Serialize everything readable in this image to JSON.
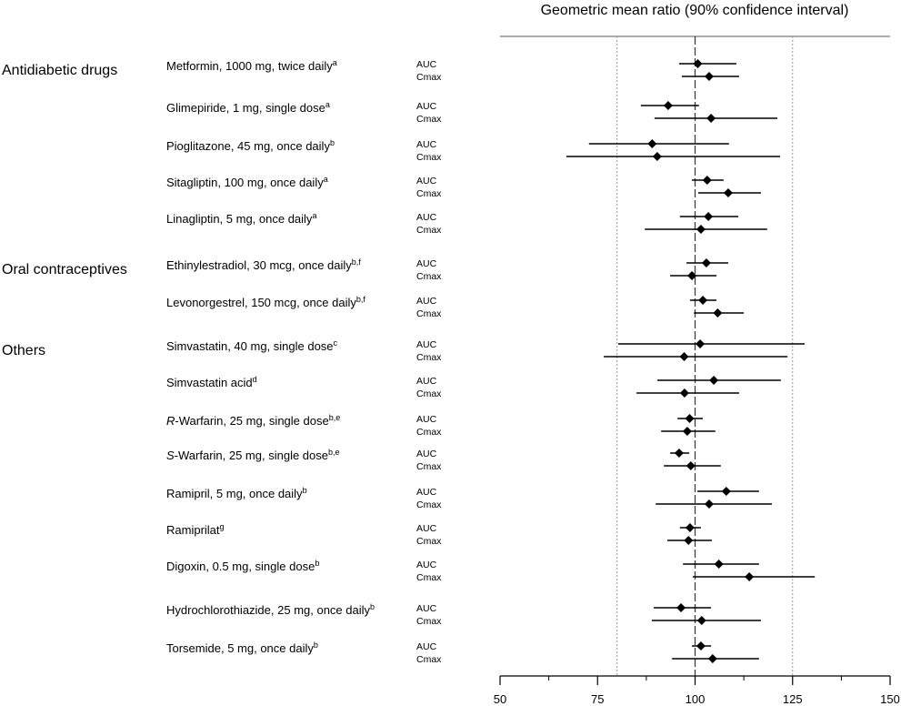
{
  "chart_data": {
    "type": "forest",
    "title": "Geometric mean ratio (90% confidence interval)",
    "xlim": [
      50,
      150
    ],
    "x_ticks": [
      50,
      75,
      100,
      125,
      150
    ],
    "x_minor_ticks": [
      62.5,
      87.5,
      112.5,
      137.5
    ],
    "reference_lines": {
      "solid_dashed": 100,
      "dotted": [
        80,
        125
      ]
    },
    "metrics": [
      "AUC",
      "Cmax"
    ],
    "groups": [
      {
        "label": "Antidiabetic drugs",
        "drugs": [
          {
            "name": "Metformin, 1000 mg, twice daily",
            "italic_prefix": "",
            "sup": "a",
            "AUC": {
              "gmr": 100.7,
              "lo": 95.9,
              "hi": 110.6
            },
            "Cmax": {
              "gmr": 103.6,
              "lo": 96.6,
              "hi": 111.3
            }
          },
          {
            "name": "Glimepiride, 1 mg, single dose",
            "italic_prefix": "",
            "sup": "a",
            "AUC": {
              "gmr": 93.1,
              "lo": 86.1,
              "hi": 101.0
            },
            "Cmax": {
              "gmr": 104.1,
              "lo": 89.6,
              "hi": 121.1
            }
          },
          {
            "name": "Pioglitazone, 45 mg, once daily",
            "italic_prefix": "",
            "sup": "b",
            "AUC": {
              "gmr": 89.0,
              "lo": 72.8,
              "hi": 108.7
            },
            "Cmax": {
              "gmr": 90.3,
              "lo": 67.0,
              "hi": 121.8
            }
          },
          {
            "name": "Sitagliptin, 100 mg, once daily",
            "italic_prefix": "",
            "sup": "a",
            "AUC": {
              "gmr": 103.1,
              "lo": 99.2,
              "hi": 107.3
            },
            "Cmax": {
              "gmr": 108.5,
              "lo": 100.8,
              "hi": 116.9
            }
          },
          {
            "name": "Linagliptin, 5 mg, once daily",
            "italic_prefix": "",
            "sup": "a",
            "AUC": {
              "gmr": 103.4,
              "lo": 96.1,
              "hi": 111.1
            },
            "Cmax": {
              "gmr": 101.5,
              "lo": 87.1,
              "hi": 118.5
            }
          }
        ]
      },
      {
        "label": "Oral contraceptives",
        "drugs": [
          {
            "name": "Ethinylestradiol, 30 mcg, once daily",
            "italic_prefix": "",
            "sup": "b,f",
            "AUC": {
              "gmr": 102.9,
              "lo": 97.8,
              "hi": 108.5
            },
            "Cmax": {
              "gmr": 99.2,
              "lo": 93.6,
              "hi": 105.5
            }
          },
          {
            "name": "Levonorgestrel, 150 mcg, once daily",
            "italic_prefix": "",
            "sup": "b,f",
            "AUC": {
              "gmr": 102.0,
              "lo": 98.7,
              "hi": 105.5
            },
            "Cmax": {
              "gmr": 105.8,
              "lo": 99.7,
              "hi": 112.5
            }
          }
        ]
      },
      {
        "label": "Others",
        "drugs": [
          {
            "name": "Simvastatin, 40 mg, single dose",
            "italic_prefix": "",
            "sup": "c",
            "AUC": {
              "gmr": 101.3,
              "lo": 80.3,
              "hi": 128.1
            },
            "Cmax": {
              "gmr": 97.2,
              "lo": 76.6,
              "hi": 123.7
            }
          },
          {
            "name": "Simvastatin acid",
            "italic_prefix": "",
            "sup": "d",
            "AUC": {
              "gmr": 104.8,
              "lo": 90.3,
              "hi": 122.0
            },
            "Cmax": {
              "gmr": 97.3,
              "lo": 85.0,
              "hi": 111.3
            }
          },
          {
            "name": "-Warfarin, 25 mg, single dose",
            "italic_prefix": "R",
            "sup": "b,e",
            "AUC": {
              "gmr": 98.6,
              "lo": 95.5,
              "hi": 102.0
            },
            "Cmax": {
              "gmr": 98.0,
              "lo": 91.3,
              "hi": 105.2
            }
          },
          {
            "name": "-Warfarin, 25 mg, single dose",
            "italic_prefix": "S",
            "sup": "b,e",
            "AUC": {
              "gmr": 95.9,
              "lo": 93.6,
              "hi": 98.5
            },
            "Cmax": {
              "gmr": 98.9,
              "lo": 92.0,
              "hi": 106.6
            }
          },
          {
            "name": "Ramipril, 5 mg, once daily",
            "italic_prefix": "",
            "sup": "b",
            "AUC": {
              "gmr": 108.0,
              "lo": 100.6,
              "hi": 116.4
            },
            "Cmax": {
              "gmr": 103.6,
              "lo": 89.9,
              "hi": 119.7
            }
          },
          {
            "name": "Ramiprilat",
            "italic_prefix": "",
            "sup": "g",
            "AUC": {
              "gmr": 98.7,
              "lo": 96.1,
              "hi": 101.5
            },
            "Cmax": {
              "gmr": 98.3,
              "lo": 92.9,
              "hi": 104.3
            }
          },
          {
            "name": "Digoxin, 0.5 mg, single dose",
            "italic_prefix": "",
            "sup": "b",
            "AUC": {
              "gmr": 106.1,
              "lo": 96.9,
              "hi": 116.4
            },
            "Cmax": {
              "gmr": 113.9,
              "lo": 99.4,
              "hi": 130.7
            }
          },
          {
            "name": "Hydrochlorothiazide, 25 mg, once daily",
            "italic_prefix": "",
            "sup": "b",
            "AUC": {
              "gmr": 96.4,
              "lo": 89.4,
              "hi": 104.1
            },
            "Cmax": {
              "gmr": 101.7,
              "lo": 88.9,
              "hi": 116.9
            }
          },
          {
            "name": "Torsemide, 5 mg, once daily",
            "italic_prefix": "",
            "sup": "b",
            "AUC": {
              "gmr": 101.5,
              "lo": 99.2,
              "hi": 104.1
            },
            "Cmax": {
              "gmr": 104.5,
              "lo": 94.1,
              "hi": 116.4
            }
          }
        ]
      }
    ]
  }
}
